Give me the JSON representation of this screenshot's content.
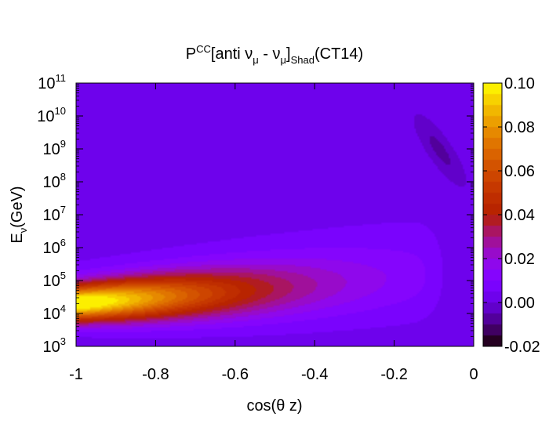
{
  "chart_data": {
    "type": "heatmap",
    "title": {
      "prefix": "P",
      "sup": "CC",
      "mid1": "[anti ν",
      "sub1": "μ",
      "mid2": " - ν",
      "sub2": "μ",
      "mid3": "]",
      "sub3": "Shad",
      "suffix": "(CT14)"
    },
    "xlabel": "cos(θ z)",
    "ylabel": {
      "main": "E",
      "sub": "ν",
      "rest": "(GeV)"
    },
    "x_range": [
      -1,
      0
    ],
    "x_ticks": [
      {
        "value": -1,
        "label": "-1"
      },
      {
        "value": -0.8,
        "label": "-0.8"
      },
      {
        "value": -0.6,
        "label": "-0.6"
      },
      {
        "value": -0.4,
        "label": "-0.4"
      },
      {
        "value": -0.2,
        "label": "-0.2"
      },
      {
        "value": 0,
        "label": "0"
      }
    ],
    "y_scale": "log",
    "y_range_log10": [
      3,
      11
    ],
    "y_ticks": [
      {
        "exp": 3,
        "base": "10",
        "sup": "3"
      },
      {
        "exp": 4,
        "base": "10",
        "sup": "4"
      },
      {
        "exp": 5,
        "base": "10",
        "sup": "5"
      },
      {
        "exp": 6,
        "base": "10",
        "sup": "6"
      },
      {
        "exp": 7,
        "base": "10",
        "sup": "7"
      },
      {
        "exp": 8,
        "base": "10",
        "sup": "8"
      },
      {
        "exp": 9,
        "base": "10",
        "sup": "9"
      },
      {
        "exp": 10,
        "base": "10",
        "sup": "10"
      },
      {
        "exp": 11,
        "base": "10",
        "sup": "11"
      }
    ],
    "colorbar": {
      "range": [
        -0.02,
        0.1
      ],
      "ticks": [
        {
          "value": 0.1,
          "label": "0.10"
        },
        {
          "value": 0.08,
          "label": "0.08"
        },
        {
          "value": 0.06,
          "label": "0.06"
        },
        {
          "value": 0.04,
          "label": "0.04"
        },
        {
          "value": 0.02,
          "label": "0.02"
        },
        {
          "value": 0.0,
          "label": "0.00"
        },
        {
          "value": -0.02,
          "label": "-0.02"
        }
      ],
      "levels": 24,
      "palette": "gnuplot (black-blue-purple-red-orange-yellow)"
    },
    "features": [
      {
        "name": "main lobe",
        "center_cos": -1.0,
        "center_log10E": 4.3,
        "peak_value": 0.1,
        "extends_to_cos": -0.05
      },
      {
        "name": "negative band",
        "cos_range": [
          -0.15,
          -0.02
        ],
        "log10E_range": [
          7.9,
          10.0
        ],
        "value": -0.003
      },
      {
        "name": "background",
        "value": 0.002
      }
    ]
  }
}
